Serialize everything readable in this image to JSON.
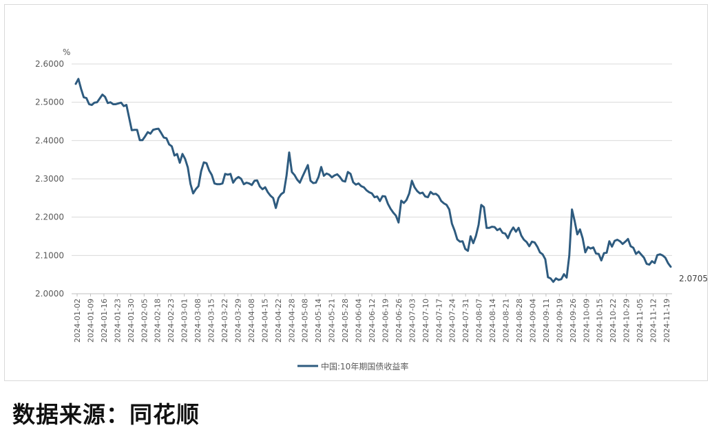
{
  "chart_data": {
    "type": "line",
    "yunit": "%",
    "ylim": [
      2.0,
      2.6
    ],
    "yticks": [
      "2.6000",
      "2.5000",
      "2.4000",
      "2.3000",
      "2.2000",
      "2.1000",
      "2.0000"
    ],
    "xticks": [
      "2024-01-02",
      "2024-01-09",
      "2024-01-16",
      "2024-01-23",
      "2024-01-30",
      "2024-02-05",
      "2024-02-18",
      "2024-02-23",
      "2024-03-01",
      "2024-03-08",
      "2024-03-15",
      "2024-03-22",
      "2024-03-29",
      "2024-04-08",
      "2024-04-15",
      "2024-04-22",
      "2024-04-28",
      "2024-05-08",
      "2024-05-14",
      "2024-05-21",
      "2024-05-28",
      "2024-06-04",
      "2024-06-12",
      "2024-06-19",
      "2024-06-26",
      "2024-07-03",
      "2024-07-10",
      "2024-07-17",
      "2024-07-24",
      "2024-07-31",
      "2024-08-07",
      "2024-08-14",
      "2024-08-21",
      "2024-08-28",
      "2024-09-04",
      "2024-09-11",
      "2024-09-19",
      "2024-09-26",
      "2024-10-09",
      "2024-10-15",
      "2024-10-22",
      "2024-10-29",
      "2024-11-05",
      "2024-11-12",
      "2024-11-19"
    ],
    "grid": true,
    "legend_position": "bottom",
    "end_label": "2.0705",
    "series": [
      {
        "name": "中国:10年期国债收益率",
        "color": "#2e5b7f",
        "values": [
          2.548,
          2.561,
          2.535,
          2.513,
          2.511,
          2.495,
          2.493,
          2.499,
          2.5,
          2.51,
          2.52,
          2.514,
          2.498,
          2.5,
          2.495,
          2.495,
          2.497,
          2.499,
          2.49,
          2.493,
          2.46,
          2.427,
          2.428,
          2.428,
          2.401,
          2.401,
          2.411,
          2.422,
          2.418,
          2.428,
          2.43,
          2.431,
          2.42,
          2.408,
          2.406,
          2.39,
          2.385,
          2.361,
          2.365,
          2.342,
          2.365,
          2.352,
          2.33,
          2.287,
          2.262,
          2.273,
          2.281,
          2.32,
          2.343,
          2.341,
          2.322,
          2.31,
          2.288,
          2.286,
          2.286,
          2.288,
          2.313,
          2.311,
          2.313,
          2.29,
          2.3,
          2.305,
          2.3,
          2.286,
          2.29,
          2.288,
          2.284,
          2.295,
          2.296,
          2.28,
          2.273,
          2.278,
          2.265,
          2.256,
          2.25,
          2.224,
          2.25,
          2.26,
          2.265,
          2.308,
          2.369,
          2.318,
          2.31,
          2.298,
          2.29,
          2.306,
          2.321,
          2.336,
          2.295,
          2.289,
          2.29,
          2.305,
          2.331,
          2.308,
          2.314,
          2.311,
          2.304,
          2.309,
          2.312,
          2.305,
          2.295,
          2.293,
          2.318,
          2.313,
          2.291,
          2.285,
          2.288,
          2.281,
          2.278,
          2.27,
          2.265,
          2.262,
          2.252,
          2.254,
          2.242,
          2.255,
          2.254,
          2.235,
          2.222,
          2.212,
          2.204,
          2.186,
          2.243,
          2.237,
          2.245,
          2.262,
          2.295,
          2.278,
          2.268,
          2.262,
          2.264,
          2.254,
          2.252,
          2.266,
          2.26,
          2.261,
          2.255,
          2.242,
          2.236,
          2.232,
          2.22,
          2.183,
          2.165,
          2.142,
          2.136,
          2.137,
          2.117,
          2.112,
          2.15,
          2.132,
          2.151,
          2.18,
          2.232,
          2.226,
          2.172,
          2.172,
          2.175,
          2.174,
          2.166,
          2.17,
          2.159,
          2.157,
          2.145,
          2.162,
          2.173,
          2.162,
          2.172,
          2.152,
          2.141,
          2.135,
          2.124,
          2.136,
          2.134,
          2.123,
          2.108,
          2.103,
          2.09,
          2.043,
          2.04,
          2.031,
          2.04,
          2.036,
          2.038,
          2.051,
          2.042,
          2.1,
          2.22,
          2.19,
          2.155,
          2.168,
          2.145,
          2.108,
          2.122,
          2.118,
          2.121,
          2.105,
          2.104,
          2.087,
          2.106,
          2.107,
          2.137,
          2.123,
          2.138,
          2.141,
          2.137,
          2.13,
          2.136,
          2.143,
          2.124,
          2.12,
          2.104,
          2.11,
          2.102,
          2.094,
          2.078,
          2.076,
          2.085,
          2.08,
          2.101,
          2.103,
          2.1,
          2.094,
          2.08,
          2.0705
        ]
      }
    ]
  },
  "source_text": "数据来源：同花顺"
}
